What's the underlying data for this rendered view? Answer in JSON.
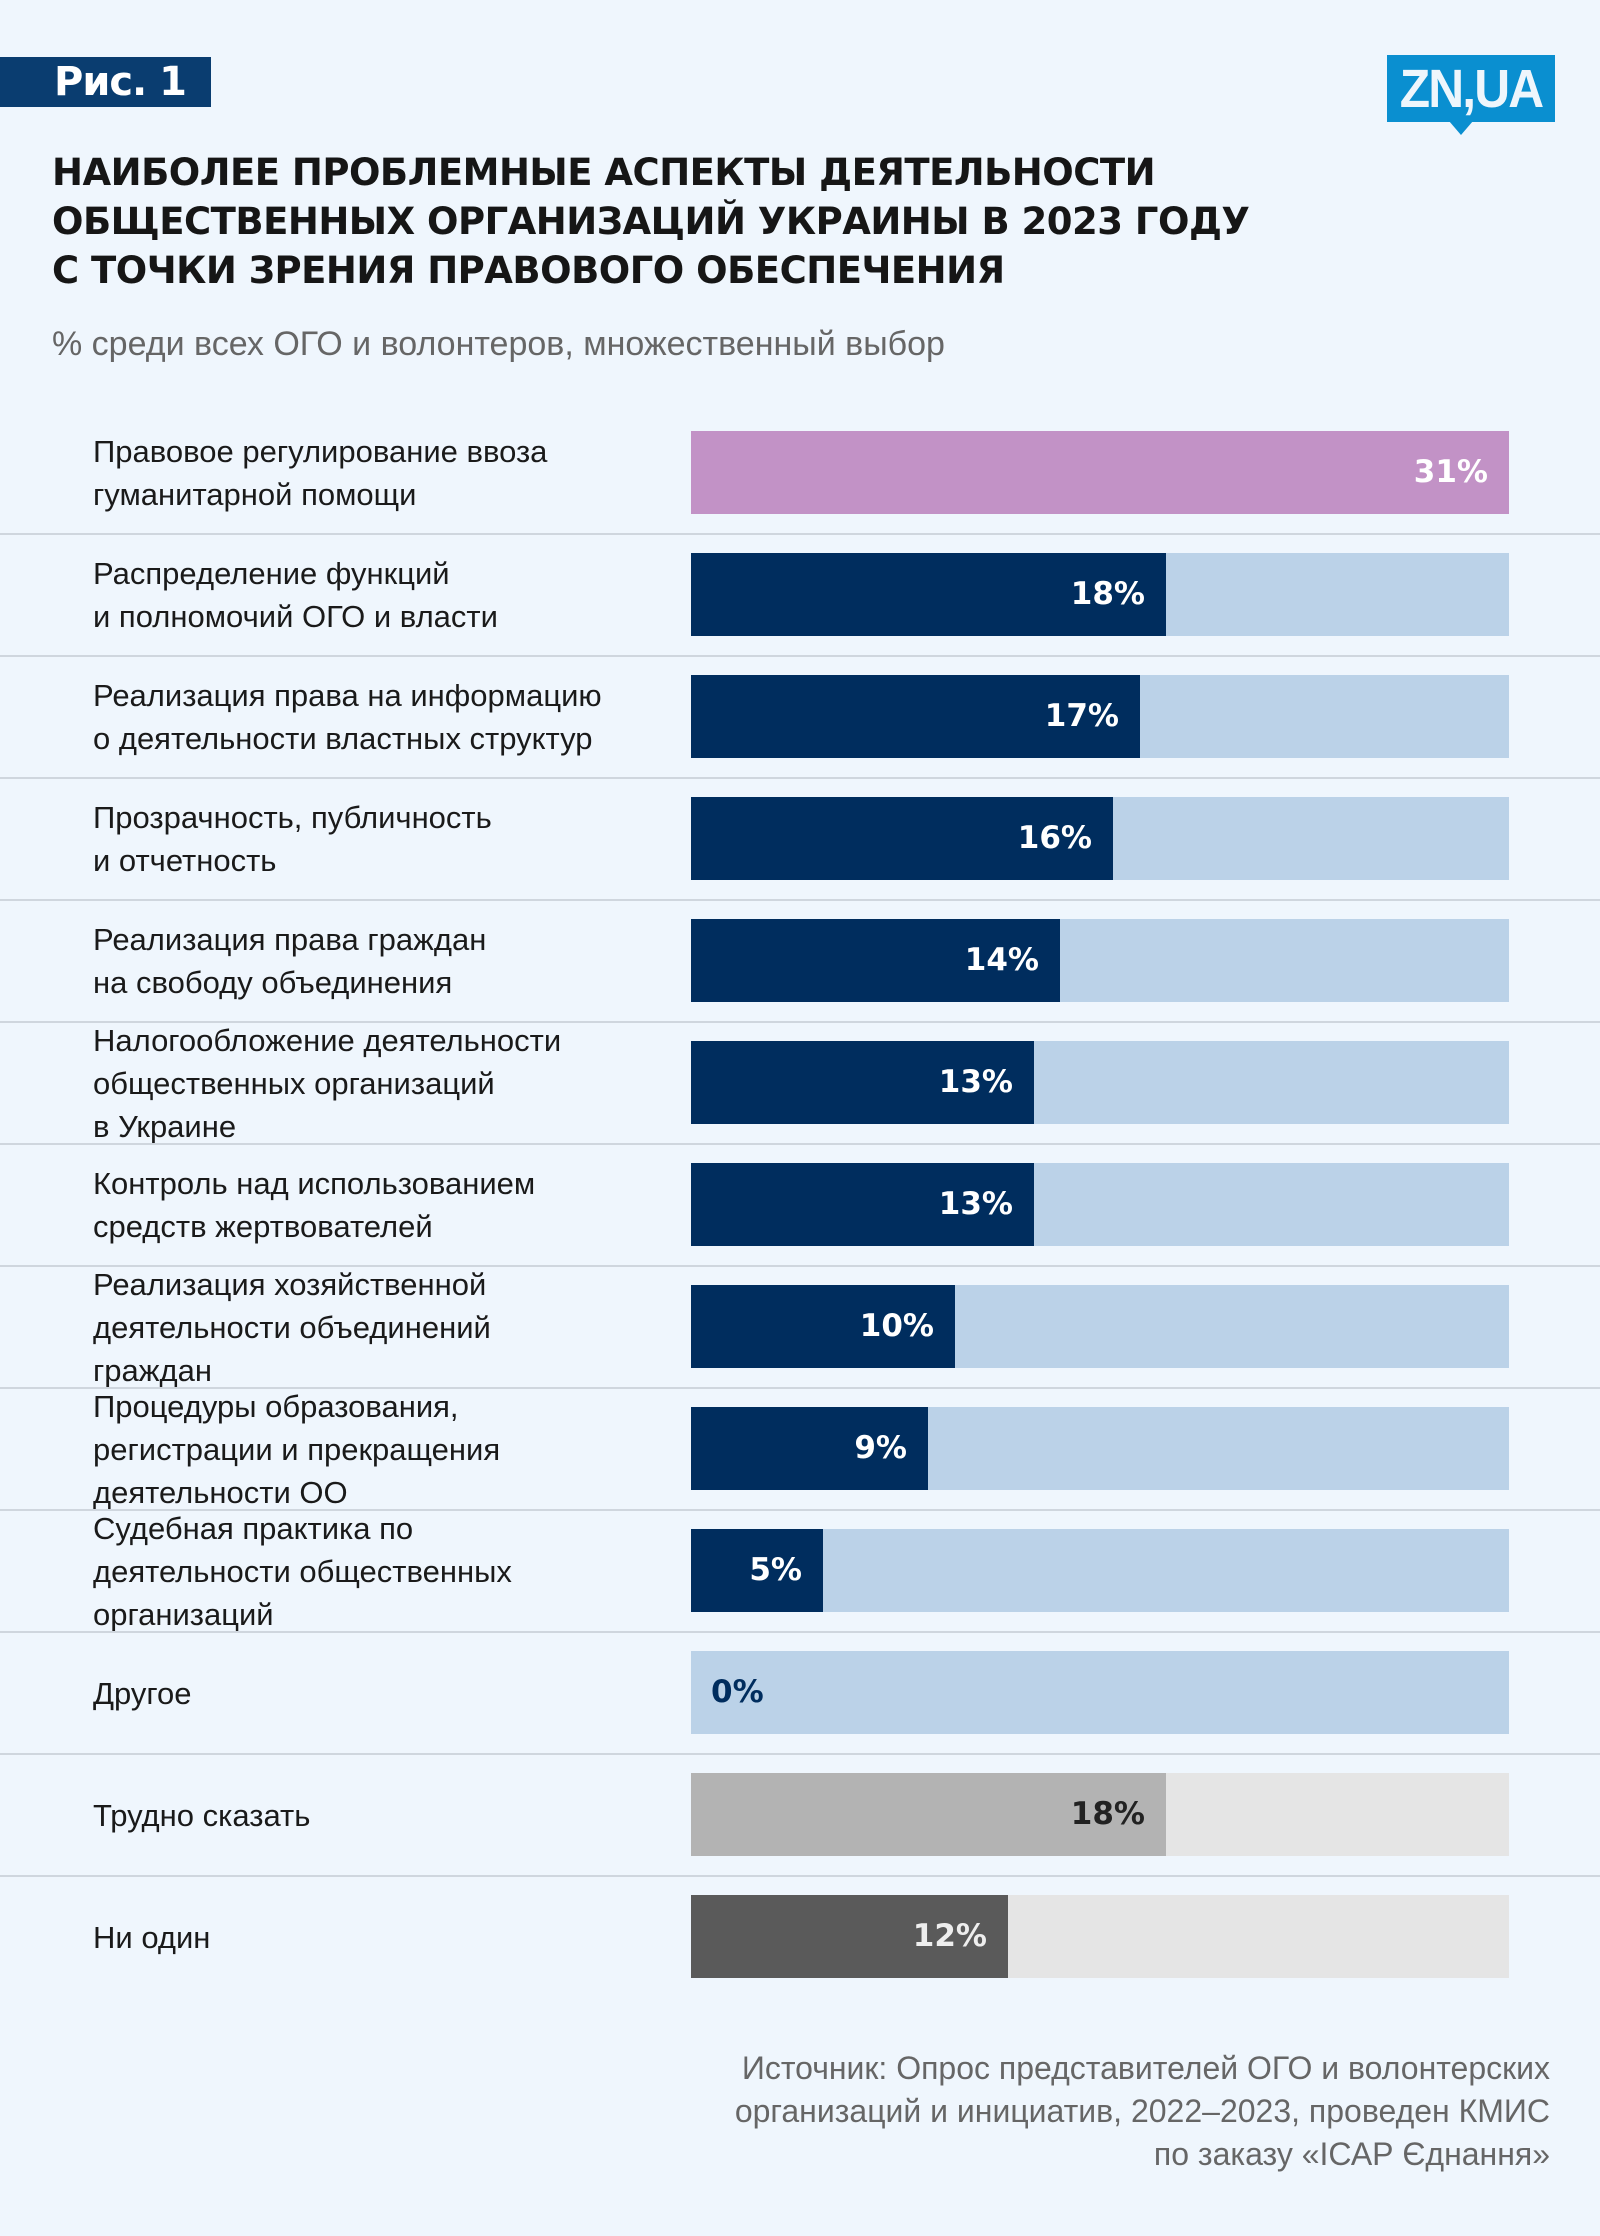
{
  "figure_tag": "Рис. 1",
  "logo_text": "ZN,UA",
  "title_lines": [
    "НАИБОЛЕЕ ПРОБЛЕМНЫЕ АСПЕКТЫ ДЕЯТЕЛЬНОСТИ",
    "ОБЩЕСТВЕННЫХ ОРГАНИЗАЦИЙ УКРАИНЫ В 2023 ГОДУ",
    "С ТОЧКИ ЗРЕНИЯ ПРАВОВОГО ОБЕСПЕЧЕНИЯ"
  ],
  "subtitle": "% среди всех ОГО и волонтеров, множественный выбор",
  "source_lines": [
    "Источник: Опрос представителей ОГО и волонтерских",
    "организаций и инициатив, 2022–2023, проведен КМИС",
    "по заказу «ІСАР Єднання»"
  ],
  "colors": {
    "background": "#eff6fd",
    "banner": "#0a3d70",
    "logo": "#0a8fd0",
    "highlight": "#c292c6",
    "primary": "#002d5e",
    "primary_track": "#bbd2e8",
    "neutral_light": "#b3b3b3",
    "neutral_dark": "#5a5a5a",
    "neutral_track": "#e5e5e5"
  },
  "chart_data": {
    "type": "bar",
    "orientation": "horizontal",
    "title": "НАИБОЛЕЕ ПРОБЛЕМНЫЕ АСПЕКТЫ ДЕЯТЕЛЬНОСТИ ОБЩЕСТВЕННЫХ ОРГАНИЗАЦИЙ УКРАИНЫ В 2023 ГОДУ С ТОЧКИ ЗРЕНИЯ ПРАВОВОГО ОБЕСПЕЧЕНИЯ",
    "subtitle": "% среди всех ОГО и волонтеров, множественный выбор",
    "unit": "%",
    "xlim": [
      0,
      31
    ],
    "grid": false,
    "bars": [
      {
        "label_lines": [
          "Правовое регулирование ввоза",
          "гуманитарной помощи"
        ],
        "value": 31,
        "value_label": "31%",
        "style": "highlight"
      },
      {
        "label_lines": [
          "Распределение функций",
          "и полномочий ОГО и власти"
        ],
        "value": 18,
        "value_label": "18%",
        "style": "primary"
      },
      {
        "label_lines": [
          "Реализация права на информацию",
          "о деятельности властных структур"
        ],
        "value": 17,
        "value_label": "17%",
        "style": "primary"
      },
      {
        "label_lines": [
          "Прозрачность, публичность",
          "и отчетность"
        ],
        "value": 16,
        "value_label": "16%",
        "style": "primary"
      },
      {
        "label_lines": [
          "Реализация права граждан",
          "на свободу объединения"
        ],
        "value": 14,
        "value_label": "14%",
        "style": "primary"
      },
      {
        "label_lines": [
          "Налогообложение деятельности",
          "общественных организаций",
          "в Украине"
        ],
        "value": 13,
        "value_label": "13%",
        "style": "primary"
      },
      {
        "label_lines": [
          "Контроль над использованием",
          "средств жертвователей"
        ],
        "value": 13,
        "value_label": "13%",
        "style": "primary"
      },
      {
        "label_lines": [
          "Реализация хозяйственной",
          "деятельности объединений",
          "граждан"
        ],
        "value": 10,
        "value_label": "10%",
        "style": "primary"
      },
      {
        "label_lines": [
          "Процедуры образования,",
          "регистрации и прекращения",
          "деятельности ОО"
        ],
        "value": 9,
        "value_label": "9%",
        "style": "primary"
      },
      {
        "label_lines": [
          "Судебная практика по",
          "деятельности общественных",
          "организаций"
        ],
        "value": 5,
        "value_label": "5%",
        "style": "primary"
      },
      {
        "label_lines": [
          "Другое"
        ],
        "value": 0,
        "value_label": "0%",
        "style": "primary"
      },
      {
        "label_lines": [
          "Трудно сказать"
        ],
        "value": 18,
        "value_label": "18%",
        "style": "neutral_light"
      },
      {
        "label_lines": [
          "Ни один"
        ],
        "value": 12,
        "value_label": "12%",
        "style": "neutral_dark"
      }
    ]
  }
}
